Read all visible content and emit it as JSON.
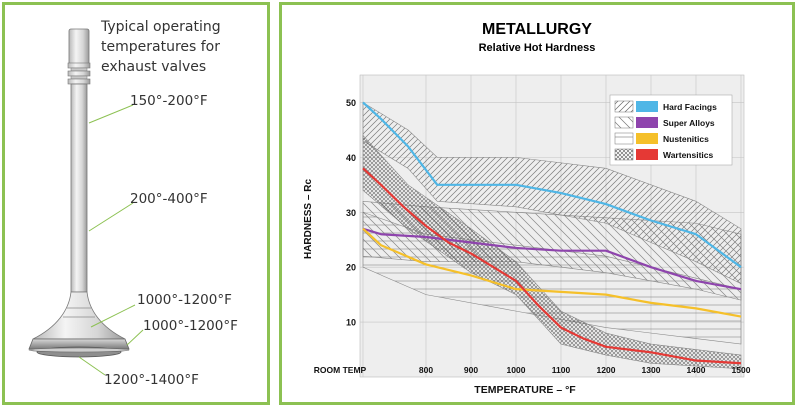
{
  "valve_panel": {
    "caption_lines": [
      "Typical operating",
      "temperatures for",
      "exhaust valves"
    ],
    "labels": {
      "stem_upper": "150°-200°F",
      "stem_middle": "200°-400°F",
      "neck": "1000°-1200°F",
      "face": "1000°-1200°F",
      "head": "1200°-1400°F"
    }
  },
  "chart_data": {
    "type": "line",
    "title": "METALLURGY",
    "subtitle": "Relative Hot Hardness",
    "xlabel": "TEMPERATURE – °F",
    "ylabel": "HARDNESS – Rc",
    "x_tick_labels": [
      "ROOM TEMP",
      "800",
      "900",
      "1000",
      "1100",
      "1200",
      "1300",
      "1400",
      "1500"
    ],
    "y_ticks": [
      10,
      20,
      30,
      40,
      50
    ],
    "xlim": [
      660,
      1500
    ],
    "ylim": [
      0,
      55
    ],
    "series": [
      {
        "name": "Hard Facings",
        "color": "#4fb6e6",
        "x": [
          660,
          700,
          760,
          825,
          900,
          1000,
          1100,
          1200,
          1300,
          1400,
          1500
        ],
        "values": [
          50,
          47,
          42,
          35,
          35,
          35,
          33.5,
          31.5,
          28.5,
          26,
          20
        ]
      },
      {
        "name": "Super Alloys",
        "color": "#8e44ad",
        "x": [
          660,
          700,
          800,
          900,
          1000,
          1100,
          1200,
          1300,
          1400,
          1500
        ],
        "values": [
          27,
          26,
          25.5,
          24.5,
          23.5,
          23,
          23,
          20,
          17.5,
          16
        ]
      },
      {
        "name": "Nustenitics",
        "color": "#f5c02a",
        "x": [
          660,
          700,
          800,
          900,
          1000,
          1100,
          1200,
          1300,
          1400,
          1500
        ],
        "values": [
          27,
          24,
          20.5,
          18.5,
          16,
          15.5,
          15,
          13.5,
          12.5,
          11
        ]
      },
      {
        "name": "Wartensitics",
        "color": "#e53935",
        "x": [
          660,
          700,
          750,
          800,
          850,
          900,
          950,
          1000,
          1050,
          1100,
          1150,
          1200,
          1300,
          1400,
          1500
        ],
        "values": [
          38,
          35,
          31,
          27.5,
          24.5,
          22.5,
          20,
          17.5,
          13,
          9,
          7,
          5.5,
          4.5,
          3,
          2.5
        ]
      }
    ],
    "bands": [
      {
        "name": "Hard Facings",
        "pattern": "diag-left",
        "upper": [
          [
            660,
            50
          ],
          [
            760,
            45
          ],
          [
            825,
            40
          ],
          [
            1000,
            40
          ],
          [
            1200,
            38
          ],
          [
            1400,
            32
          ],
          [
            1500,
            27
          ]
        ],
        "lower": [
          [
            660,
            43
          ],
          [
            760,
            38
          ],
          [
            825,
            32
          ],
          [
            1000,
            31
          ],
          [
            1200,
            28
          ],
          [
            1400,
            21
          ],
          [
            1500,
            17
          ]
        ]
      },
      {
        "name": "Super Alloys",
        "pattern": "diag-right",
        "upper": [
          [
            660,
            32
          ],
          [
            800,
            31
          ],
          [
            1000,
            30
          ],
          [
            1200,
            29
          ],
          [
            1400,
            28
          ],
          [
            1500,
            26
          ]
        ],
        "lower": [
          [
            660,
            22
          ],
          [
            800,
            21
          ],
          [
            1000,
            21
          ],
          [
            1200,
            19
          ],
          [
            1400,
            16
          ],
          [
            1500,
            14
          ]
        ]
      },
      {
        "name": "Nustenitics",
        "pattern": "horizontal",
        "upper": [
          [
            660,
            30
          ],
          [
            800,
            26
          ],
          [
            1000,
            24
          ],
          [
            1200,
            22
          ],
          [
            1400,
            18
          ],
          [
            1500,
            16
          ]
        ],
        "lower": [
          [
            660,
            20
          ],
          [
            800,
            15
          ],
          [
            1000,
            12
          ],
          [
            1200,
            9
          ],
          [
            1400,
            7
          ],
          [
            1500,
            6
          ]
        ]
      },
      {
        "name": "Wartensitics",
        "pattern": "crosshatch",
        "upper": [
          [
            660,
            44
          ],
          [
            760,
            35
          ],
          [
            900,
            27
          ],
          [
            1000,
            21
          ],
          [
            1100,
            12
          ],
          [
            1200,
            8
          ],
          [
            1300,
            6
          ],
          [
            1500,
            4
          ]
        ],
        "lower": [
          [
            660,
            34
          ],
          [
            760,
            27
          ],
          [
            900,
            19
          ],
          [
            1000,
            15
          ],
          [
            1100,
            6
          ],
          [
            1200,
            4
          ],
          [
            1300,
            2.5
          ],
          [
            1500,
            1.5
          ]
        ]
      }
    ],
    "legend_position": "top-right"
  }
}
